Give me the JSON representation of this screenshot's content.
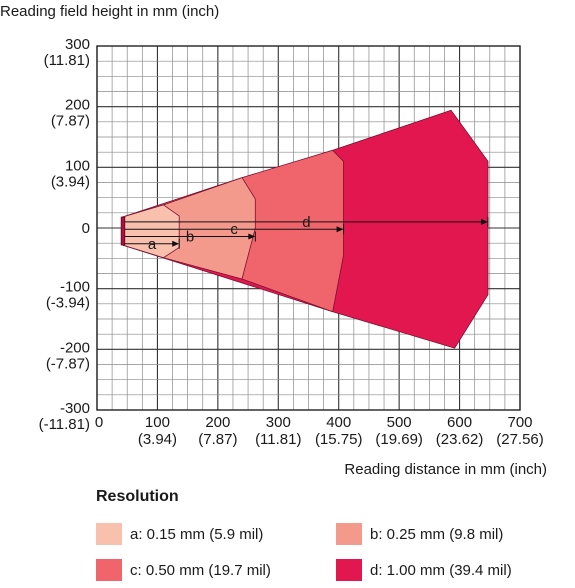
{
  "chart_data": {
    "type": "area",
    "title": "",
    "ylabel": "Reading field height in mm (inch)",
    "xlabel": "Reading distance in mm (inch)",
    "xlim": [
      0,
      700
    ],
    "ylim": [
      -300,
      300
    ],
    "grid": true,
    "x_ticks": [
      {
        "value": 0,
        "mm": "0",
        "inch": ""
      },
      {
        "value": 100,
        "mm": "100",
        "inch": "(3.94)"
      },
      {
        "value": 200,
        "mm": "200",
        "inch": "(7.87)"
      },
      {
        "value": 300,
        "mm": "300",
        "inch": "(11.81)"
      },
      {
        "value": 400,
        "mm": "400",
        "inch": "(15.75)"
      },
      {
        "value": 500,
        "mm": "500",
        "inch": "(19.69)"
      },
      {
        "value": 600,
        "mm": "600",
        "inch": "(23.62)"
      },
      {
        "value": 700,
        "mm": "700",
        "inch": "(27.56)"
      }
    ],
    "y_ticks": [
      {
        "value": 300,
        "mm": "300",
        "inch": "(11.81)"
      },
      {
        "value": 200,
        "mm": "200",
        "inch": "(7.87)"
      },
      {
        "value": 100,
        "mm": "100",
        "inch": "(3.94)"
      },
      {
        "value": 0,
        "mm": "0",
        "inch": ""
      },
      {
        "value": -100,
        "mm": "-100",
        "inch": "(-3.94)"
      },
      {
        "value": -200,
        "mm": "-200",
        "inch": "(-7.87)"
      },
      {
        "value": -300,
        "mm": "-300",
        "inch": "(-11.81)"
      }
    ],
    "series": [
      {
        "name": "d",
        "color": "#e3174f",
        "polygon": [
          [
            42,
            -28
          ],
          [
            42,
            18
          ],
          [
            390,
            128
          ],
          [
            586,
            194
          ],
          [
            647,
            110
          ],
          [
            647,
            -110
          ],
          [
            592,
            -198
          ],
          [
            390,
            -138
          ],
          [
            42,
            -28
          ]
        ],
        "arrow_end": 647
      },
      {
        "name": "c",
        "color": "#f0646c",
        "polygon": [
          [
            42,
            -28
          ],
          [
            42,
            18
          ],
          [
            240,
            83
          ],
          [
            390,
            128
          ],
          [
            408,
            110
          ],
          [
            408,
            -45
          ],
          [
            390,
            -138
          ],
          [
            240,
            -84
          ]
        ],
        "arrow_end": 408
      },
      {
        "name": "b",
        "color": "#f49a8c",
        "polygon": [
          [
            42,
            -28
          ],
          [
            42,
            18
          ],
          [
            110,
            38
          ],
          [
            240,
            83
          ],
          [
            262,
            48
          ],
          [
            262,
            0
          ],
          [
            240,
            -84
          ],
          [
            110,
            -49
          ]
        ],
        "arrow_end": 262
      },
      {
        "name": "a",
        "color": "#f8c0ad",
        "polygon": [
          [
            42,
            -28
          ],
          [
            42,
            18
          ],
          [
            110,
            38
          ],
          [
            136,
            20
          ],
          [
            136,
            -32
          ],
          [
            110,
            -49
          ]
        ],
        "arrow_end": 136
      }
    ],
    "legend": {
      "title": "Resolution",
      "entries": [
        {
          "label": "a: 0.15 mm (5.9 mil)",
          "color": "#f8c0ad"
        },
        {
          "label": "b: 0.25 mm (9.8 mil)",
          "color": "#f49a8c"
        },
        {
          "label": "c: 0.50 mm (19.7 mil)",
          "color": "#f0646c"
        },
        {
          "label": "d: 1.00 mm (39.4 mil)",
          "color": "#e3174f"
        }
      ]
    }
  }
}
